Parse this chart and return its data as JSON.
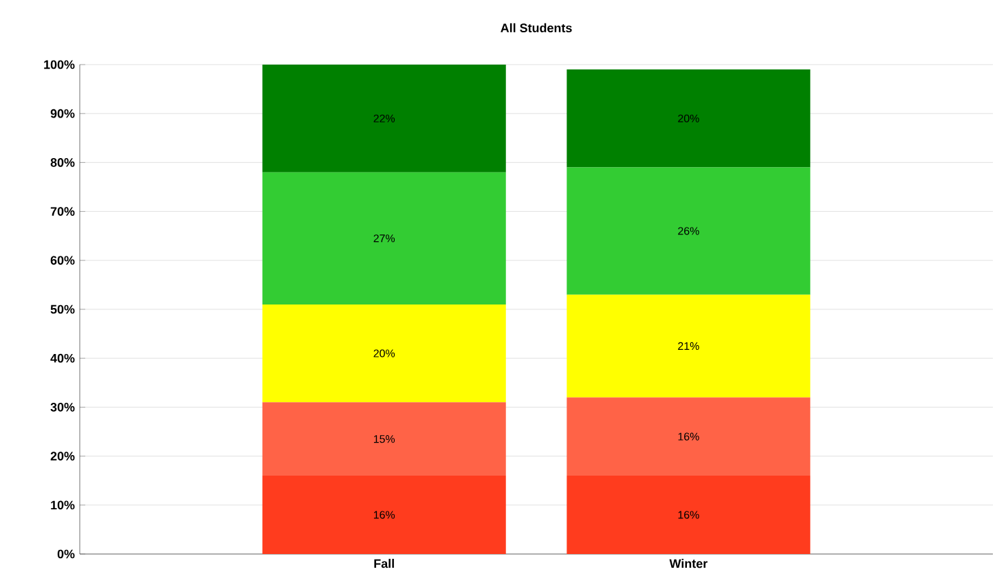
{
  "chart_data": {
    "type": "bar",
    "title": "All Students",
    "stacked": true,
    "categories": [
      "Fall",
      "Winter"
    ],
    "series": [
      {
        "color": "#ff3c1e",
        "values": [
          16,
          16
        ],
        "value_labels": [
          "16%",
          "16%"
        ]
      },
      {
        "color": "#ff6347",
        "values": [
          15,
          16
        ],
        "value_labels": [
          "15%",
          "16%"
        ]
      },
      {
        "color": "#ffff00",
        "values": [
          20,
          21
        ],
        "value_labels": [
          "20%",
          "21%"
        ]
      },
      {
        "color": "#33cc33",
        "values": [
          27,
          26
        ],
        "value_labels": [
          "27%",
          "26%"
        ]
      },
      {
        "color": "#008000",
        "values": [
          22,
          20
        ],
        "value_labels": [
          "22%",
          "20%"
        ]
      }
    ],
    "ylim": [
      0,
      100
    ],
    "yticks": [
      {
        "value": 0,
        "label": "0%"
      },
      {
        "value": 10,
        "label": "10%"
      },
      {
        "value": 20,
        "label": "20%"
      },
      {
        "value": 30,
        "label": "30%"
      },
      {
        "value": 40,
        "label": "40%"
      },
      {
        "value": 50,
        "label": "50%"
      },
      {
        "value": 60,
        "label": "60%"
      },
      {
        "value": 70,
        "label": "70%"
      },
      {
        "value": 80,
        "label": "80%"
      },
      {
        "value": 90,
        "label": "90%"
      },
      {
        "value": 100,
        "label": "100%"
      }
    ],
    "grid": "y"
  }
}
